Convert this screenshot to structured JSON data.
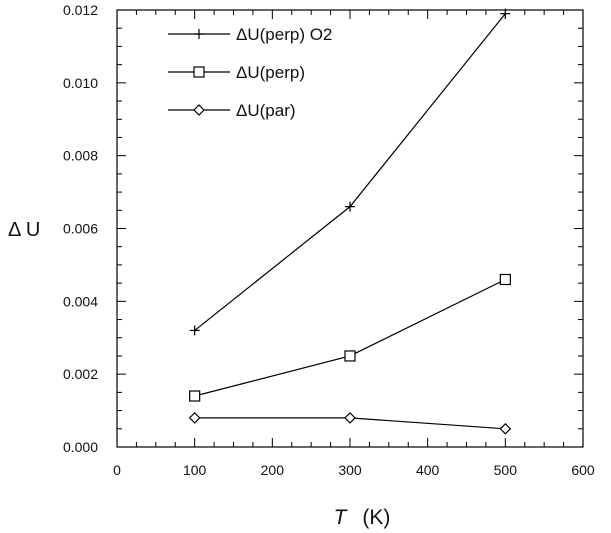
{
  "chart_data": {
    "type": "line",
    "xlabel": "T",
    "xlabel_unit": "(K)",
    "ylabel": "Δ U",
    "xlim": [
      0,
      600
    ],
    "ylim": [
      0,
      0.012
    ],
    "xticks": [
      "0",
      "100",
      "200",
      "300",
      "400",
      "500",
      "600"
    ],
    "yticks": [
      "0.000",
      "0.002",
      "0.004",
      "0.006",
      "0.008",
      "0.010",
      "0.012"
    ],
    "grid": false,
    "legend_position": "top-left",
    "series": [
      {
        "name": "ΔU(perp)  O2",
        "marker": "plus",
        "x": [
          100,
          300,
          500
        ],
        "y": [
          0.0032,
          0.0066,
          0.0119
        ]
      },
      {
        "name": "ΔU(perp)",
        "marker": "square",
        "x": [
          100,
          300,
          500
        ],
        "y": [
          0.0014,
          0.0025,
          0.0046
        ]
      },
      {
        "name": "ΔU(par)",
        "marker": "diamond",
        "x": [
          100,
          300,
          500
        ],
        "y": [
          0.0008,
          0.0008,
          0.0005
        ]
      }
    ]
  }
}
